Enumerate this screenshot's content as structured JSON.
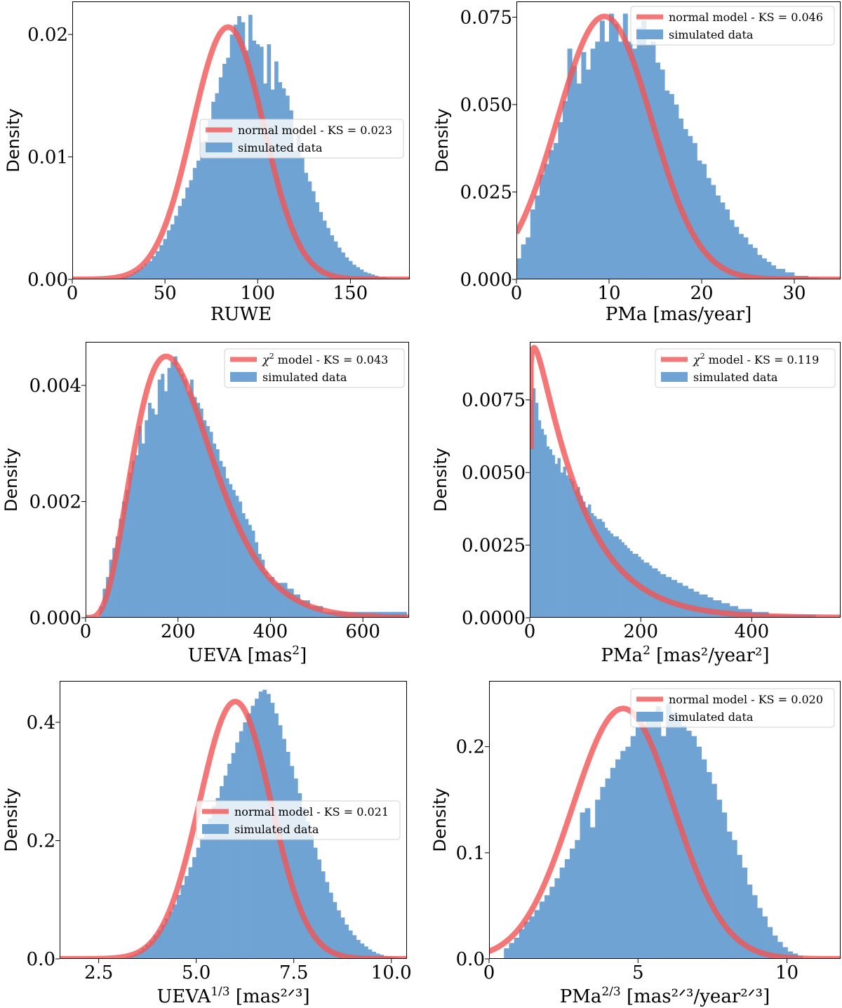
{
  "figure": {
    "panels": 6,
    "layout": "3 rows x 2 columns"
  },
  "colors": {
    "histogram": "#6fa3d3",
    "model_line": "#f15555",
    "frame": "#000000",
    "background": "#ffffff"
  },
  "chart_data": [
    {
      "id": "ruwe",
      "type": "bar",
      "title": "",
      "xlabel": "RUWE",
      "xlabel_sup": "",
      "xlabel_tail": "",
      "ylabel": "Density",
      "xlim": [
        0,
        182
      ],
      "ylim": [
        0,
        0.0227
      ],
      "xticks": [
        0,
        50,
        100,
        150
      ],
      "xtick_labels": [
        "0",
        "50",
        "100",
        "150"
      ],
      "yticks": [
        0,
        0.01,
        0.02
      ],
      "ytick_labels": [
        "0.00",
        "0.01",
        "0.02"
      ],
      "legend_position": "center-right",
      "legend": [
        {
          "kind": "line",
          "prefix": "",
          "sup": "",
          "text": "normal model - KS = 0.023"
        },
        {
          "kind": "patch",
          "prefix": "",
          "sup": "",
          "text": "simulated data"
        }
      ],
      "model": {
        "kind": "normal",
        "mu": 84,
        "sigma": 19.3,
        "amplitude": 0.0206,
        "x_start": 0,
        "x_end": 182
      },
      "hist": {
        "x0": 25,
        "width": 2,
        "values": [
          0.0001,
          0.0002,
          0.0003,
          0.0004,
          0.0006,
          0.0008,
          0.001,
          0.0013,
          0.0015,
          0.0019,
          0.0023,
          0.0028,
          0.0033,
          0.004,
          0.0045,
          0.0052,
          0.006,
          0.0066,
          0.0075,
          0.0081,
          0.0091,
          0.0097,
          0.0112,
          0.0113,
          0.013,
          0.0145,
          0.0152,
          0.0165,
          0.0176,
          0.0181,
          0.02,
          0.0208,
          0.0215,
          0.021,
          0.0187,
          0.0216,
          0.0195,
          0.0192,
          0.019,
          0.016,
          0.0192,
          0.0155,
          0.0178,
          0.0161,
          0.0156,
          0.015,
          0.0138,
          0.0105,
          0.0119,
          0.01,
          0.0087,
          0.008,
          0.0072,
          0.0063,
          0.0055,
          0.0048,
          0.0042,
          0.0036,
          0.0031,
          0.0026,
          0.0022,
          0.0018,
          0.0015,
          0.0012,
          0.001,
          0.0008,
          0.0006,
          0.0005,
          0.0004,
          0.0003,
          0.0002,
          0.0002,
          0.0001
        ]
      }
    },
    {
      "id": "pma",
      "type": "bar",
      "title": "",
      "xlabel": "PMa [mas/year]",
      "xlabel_sup": "",
      "xlabel_tail": "",
      "ylabel": "Density",
      "xlim": [
        0,
        35
      ],
      "ylim": [
        0,
        0.0795
      ],
      "xticks": [
        0,
        10,
        20,
        30
      ],
      "xtick_labels": [
        "0",
        "10",
        "20",
        "30"
      ],
      "yticks": [
        0,
        0.025,
        0.05,
        0.075
      ],
      "ytick_labels": [
        "0.000",
        "0.025",
        "0.050",
        "0.075"
      ],
      "legend_position": "top-right",
      "legend": [
        {
          "kind": "line",
          "prefix": "",
          "sup": "",
          "text": "normal model - KS = 0.046"
        },
        {
          "kind": "patch",
          "prefix": "",
          "sup": "",
          "text": "simulated data"
        }
      ],
      "model": {
        "kind": "normal",
        "mu": 9.5,
        "sigma": 5.1,
        "amplitude": 0.0752,
        "x_start": 0,
        "x_end": 35
      },
      "hist": {
        "x0": 0,
        "width": 0.5,
        "values": [
          0.006,
          0.01,
          0.012,
          0.02,
          0.024,
          0.03,
          0.033,
          0.037,
          0.039,
          0.045,
          0.051,
          0.066,
          0.061,
          0.056,
          0.065,
          0.06,
          0.066,
          0.068,
          0.074,
          0.068,
          0.076,
          0.073,
          0.068,
          0.076,
          0.068,
          0.066,
          0.072,
          0.074,
          0.067,
          0.068,
          0.062,
          0.06,
          0.054,
          0.053,
          0.05,
          0.046,
          0.043,
          0.041,
          0.039,
          0.034,
          0.033,
          0.029,
          0.027,
          0.024,
          0.022,
          0.02,
          0.017,
          0.015,
          0.013,
          0.012,
          0.01,
          0.009,
          0.007,
          0.006,
          0.005,
          0.004,
          0.003,
          0.003,
          0.002,
          0.002,
          0.001,
          0.001,
          0.001,
          0.0005,
          0.0005,
          0.0003,
          0.0002,
          0.0001,
          0.0001,
          0.0001
        ]
      }
    },
    {
      "id": "ueva",
      "type": "bar",
      "title": "",
      "xlabel": "UEVA [mas",
      "xlabel_sup": "2",
      "xlabel_tail": "]",
      "ylabel": "Density",
      "xlim": [
        0,
        700
      ],
      "ylim": [
        0,
        0.00475
      ],
      "xticks": [
        0,
        200,
        400,
        600
      ],
      "xtick_labels": [
        "0",
        "200",
        "400",
        "600"
      ],
      "yticks": [
        0,
        0.002,
        0.004
      ],
      "ytick_labels": [
        "0.000",
        "0.002",
        "0.004"
      ],
      "legend_position": "top-right",
      "legend": [
        {
          "kind": "line",
          "prefix": "χ",
          "sup": "2",
          "text": " model - KS = 0.043"
        },
        {
          "kind": "patch",
          "prefix": "",
          "sup": "",
          "text": "simulated data"
        }
      ],
      "model": {
        "kind": "gamma",
        "k": 5.1,
        "theta": 42.5,
        "amplitude": 0.0045,
        "x_start": 0,
        "x_end": 700
      },
      "hist": {
        "x0": 30,
        "width": 7,
        "values": [
          0.0002,
          0.0005,
          0.0007,
          0.001,
          0.0012,
          0.0014,
          0.0017,
          0.002,
          0.0022,
          0.0025,
          0.0027,
          0.0028,
          0.0033,
          0.003,
          0.0034,
          0.0037,
          0.0036,
          0.0035,
          0.0041,
          0.0042,
          0.0039,
          0.0043,
          0.0044,
          0.0045,
          0.0043,
          0.0042,
          0.0041,
          0.0039,
          0.0041,
          0.0038,
          0.0037,
          0.0036,
          0.0034,
          0.0033,
          0.0032,
          0.003,
          0.0029,
          0.0027,
          0.0026,
          0.0024,
          0.0023,
          0.0022,
          0.0021,
          0.002,
          0.0018,
          0.0017,
          0.0016,
          0.0015,
          0.0013,
          0.0011,
          0.001,
          0.0008,
          0.0007,
          0.0007,
          0.0006,
          0.0006,
          0.0006,
          0.0006,
          0.0005,
          0.0005,
          0.0004,
          0.0004,
          0.0003,
          0.0003,
          0.0003,
          0.0002,
          0.0002,
          0.0002,
          0.0002,
          0.0001,
          0.0001,
          0.0001,
          0.0001,
          0.0001,
          0.0001,
          0.0001,
          0.0001,
          0.0001,
          0.0001,
          0.0001,
          0.0001,
          0.0001,
          0.0001,
          0.0001,
          0.0001,
          0.0001,
          0.0001,
          0.0001,
          0.0001,
          0.0001,
          0.0001,
          0.0001,
          0.0001,
          0.0001,
          0.0001
        ]
      }
    },
    {
      "id": "pma_squared",
      "type": "bar",
      "title": "",
      "xlabel": "PMa",
      "xlabel_sup": "2",
      "xlabel_tail": " [mas²/year²]",
      "ylabel": "Density",
      "xlim": [
        0,
        560
      ],
      "ylim": [
        0,
        0.0095
      ],
      "xticks": [
        0,
        200,
        400
      ],
      "xtick_labels": [
        "0",
        "200",
        "400"
      ],
      "yticks": [
        0,
        0.0025,
        0.005,
        0.0075
      ],
      "ytick_labels": [
        "0.0000",
        "0.0025",
        "0.0050",
        "0.0075"
      ],
      "legend_position": "top-right",
      "legend": [
        {
          "kind": "line",
          "prefix": "χ",
          "sup": "2",
          "text": " model - KS = 0.119"
        },
        {
          "kind": "patch",
          "prefix": "",
          "sup": "",
          "text": "simulated data"
        }
      ],
      "model": {
        "kind": "gamma",
        "k": 1.1,
        "theta": 77,
        "amplitude": 0.0093,
        "x_start": 2,
        "x_end": 560
      },
      "hist": {
        "x0": 0,
        "width": 5,
        "values": [
          0.0075,
          0.0079,
          0.0074,
          0.0068,
          0.0065,
          0.0063,
          0.0059,
          0.0058,
          0.0056,
          0.0053,
          0.0055,
          0.005,
          0.0052,
          0.0049,
          0.0048,
          0.0047,
          0.0044,
          0.0045,
          0.0042,
          0.004,
          0.0038,
          0.0039,
          0.0036,
          0.0035,
          0.0034,
          0.0034,
          0.0033,
          0.0031,
          0.003,
          0.0029,
          0.0028,
          0.0028,
          0.0027,
          0.0026,
          0.0025,
          0.0024,
          0.0023,
          0.0022,
          0.0022,
          0.0021,
          0.002,
          0.0019,
          0.0019,
          0.0018,
          0.0017,
          0.0017,
          0.0016,
          0.0015,
          0.0015,
          0.0014,
          0.0014,
          0.0013,
          0.0013,
          0.0012,
          0.0012,
          0.0011,
          0.0011,
          0.001,
          0.001,
          0.0009,
          0.0009,
          0.0008,
          0.0008,
          0.0008,
          0.0007,
          0.0007,
          0.0006,
          0.0006,
          0.0006,
          0.0005,
          0.0005,
          0.0005,
          0.0004,
          0.0004,
          0.0004,
          0.0003,
          0.0003,
          0.0003,
          0.0003,
          0.0003,
          0.0002,
          0.0002,
          0.0002,
          0.0002,
          0.0002,
          0.0002,
          0.0001,
          0.0001,
          0.0001,
          0.0001,
          0.0001,
          0.0001,
          0.0001,
          0.0001,
          0.0001,
          0.0001,
          0.0001,
          0.0001,
          0.0001,
          0.0001,
          0.0001,
          0.0001,
          0.0001
        ]
      }
    },
    {
      "id": "ueva_cuberoot",
      "type": "bar",
      "title": "",
      "xlabel": "UEVA",
      "xlabel_sup": "1/3",
      "xlabel_tail": " [mas²ᐟ³]",
      "ylabel": "Density",
      "xlim": [
        1.5,
        10.4
      ],
      "ylim": [
        0,
        0.47
      ],
      "xticks": [
        2.5,
        5.0,
        7.5,
        10.0
      ],
      "xtick_labels": [
        "2.5",
        "5.0",
        "7.5",
        "10.0"
      ],
      "yticks": [
        0,
        0.2,
        0.4
      ],
      "ytick_labels": [
        "0.0",
        "0.2",
        "0.4"
      ],
      "legend_position": "center-right",
      "legend": [
        {
          "kind": "line",
          "prefix": "",
          "sup": "",
          "text": "normal model - KS = 0.021"
        },
        {
          "kind": "patch",
          "prefix": "",
          "sup": "",
          "text": "simulated data"
        }
      ],
      "model": {
        "kind": "normal",
        "mu": 6.0,
        "sigma": 0.92,
        "amplitude": 0.435,
        "x_start": 1.5,
        "x_end": 10.4
      },
      "hist": {
        "x0": 3.0,
        "width": 0.1,
        "values": [
          0.001,
          0.002,
          0.004,
          0.006,
          0.009,
          0.013,
          0.018,
          0.024,
          0.031,
          0.04,
          0.048,
          0.058,
          0.068,
          0.08,
          0.092,
          0.108,
          0.125,
          0.14,
          0.155,
          0.172,
          0.188,
          0.205,
          0.22,
          0.238,
          0.258,
          0.272,
          0.292,
          0.31,
          0.33,
          0.348,
          0.366,
          0.385,
          0.4,
          0.415,
          0.428,
          0.44,
          0.452,
          0.455,
          0.448,
          0.433,
          0.415,
          0.395,
          0.372,
          0.35,
          0.326,
          0.305,
          0.28,
          0.256,
          0.232,
          0.21,
          0.188,
          0.168,
          0.148,
          0.13,
          0.112,
          0.096,
          0.082,
          0.07,
          0.058,
          0.048,
          0.04,
          0.032,
          0.026,
          0.021,
          0.016,
          0.012,
          0.009,
          0.007,
          0.005,
          0.004,
          0.003,
          0.002
        ]
      }
    },
    {
      "id": "pma_two_thirds",
      "type": "bar",
      "title": "",
      "xlabel": "PMa",
      "xlabel_sup": "2/3",
      "xlabel_tail": " [mas²ᐟ³/year²ᐟ³]",
      "ylabel": "Density",
      "xlim": [
        0,
        11.8
      ],
      "ylim": [
        0,
        0.262
      ],
      "xticks": [
        0,
        5,
        10
      ],
      "xtick_labels": [
        "0",
        "5",
        "10"
      ],
      "yticks": [
        0,
        0.1,
        0.2
      ],
      "ytick_labels": [
        "0.0",
        "0.1",
        "0.2"
      ],
      "legend_position": "top-right",
      "legend": [
        {
          "kind": "line",
          "prefix": "",
          "sup": "",
          "text": "normal model - KS = 0.020"
        },
        {
          "kind": "patch",
          "prefix": "",
          "sup": "",
          "text": "simulated data"
        }
      ],
      "model": {
        "kind": "normal",
        "mu": 4.5,
        "sigma": 1.7,
        "amplitude": 0.236,
        "x_start": 0,
        "x_end": 11.8
      },
      "hist": {
        "x0": 0.5,
        "width": 0.17,
        "values": [
          0.01,
          0.015,
          0.02,
          0.028,
          0.035,
          0.04,
          0.046,
          0.054,
          0.06,
          0.068,
          0.076,
          0.086,
          0.094,
          0.104,
          0.112,
          0.138,
          0.142,
          0.124,
          0.15,
          0.162,
          0.17,
          0.18,
          0.188,
          0.196,
          0.2,
          0.21,
          0.218,
          0.22,
          0.225,
          0.232,
          0.238,
          0.21,
          0.24,
          0.232,
          0.228,
          0.22,
          0.215,
          0.21,
          0.2,
          0.188,
          0.176,
          0.165,
          0.15,
          0.138,
          0.12,
          0.112,
          0.098,
          0.086,
          0.07,
          0.06,
          0.048,
          0.04,
          0.03,
          0.022,
          0.016,
          0.011,
          0.007,
          0.005,
          0.003
        ]
      }
    }
  ]
}
